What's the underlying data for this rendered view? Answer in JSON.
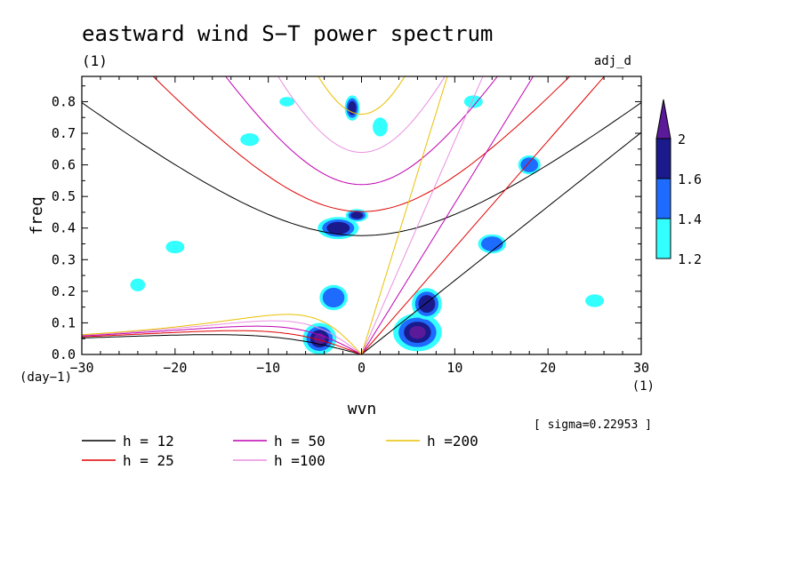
{
  "chart_data": {
    "type": "heatmap",
    "title": "eastward wind S−T power spectrum",
    "subtitle_left": "(1)",
    "subtitle_right": "adj_d",
    "xlabel": "wvn",
    "x_unit": "(1)",
    "ylabel": "freq",
    "y_unit": "(day−1)",
    "xlim": [
      -30,
      30
    ],
    "ylim": [
      0,
      0.88
    ],
    "x_ticks": [
      -30,
      -20,
      -10,
      0,
      10,
      20,
      30
    ],
    "x_tick_labels": [
      "−30",
      "−20",
      "−10",
      "0",
      "10",
      "20",
      "30"
    ],
    "y_ticks": [
      0,
      0.1,
      0.2,
      0.3,
      0.4,
      0.5,
      0.6,
      0.7,
      0.8
    ],
    "y_tick_labels": [
      "0.0",
      "0.1",
      "0.2",
      "0.3",
      "0.4",
      "0.5",
      "0.6",
      "0.7",
      "0.8"
    ],
    "sigma_text": "[ sigma=0.22953 ]",
    "colorbar": {
      "levels": [
        1.2,
        1.4,
        1.6,
        2
      ],
      "labels": [
        "1.2",
        "1.4",
        "1.6",
        "2"
      ],
      "colors": [
        "#33ffff",
        "#1e6bff",
        "#1a1a8c",
        "#5a1a99"
      ]
    },
    "blobs": [
      {
        "x": 6,
        "y": 0.07,
        "rx": 2.6,
        "ry": 0.06,
        "level": 3
      },
      {
        "x": 7,
        "y": 0.16,
        "rx": 1.6,
        "ry": 0.05,
        "level": 2
      },
      {
        "x": -4.5,
        "y": 0.05,
        "rx": 1.8,
        "ry": 0.05,
        "level": 3
      },
      {
        "x": -2.5,
        "y": 0.4,
        "rx": 2.2,
        "ry": 0.035,
        "level": 2
      },
      {
        "x": -0.5,
        "y": 0.44,
        "rx": 1.2,
        "ry": 0.02,
        "level": 2
      },
      {
        "x": -1,
        "y": 0.78,
        "rx": 0.8,
        "ry": 0.04,
        "level": 2
      },
      {
        "x": -3,
        "y": 0.18,
        "rx": 1.5,
        "ry": 0.04,
        "level": 1
      },
      {
        "x": 14,
        "y": 0.35,
        "rx": 1.5,
        "ry": 0.03,
        "level": 1
      },
      {
        "x": 18,
        "y": 0.6,
        "rx": 1.2,
        "ry": 0.03,
        "level": 1
      },
      {
        "x": -12,
        "y": 0.68,
        "rx": 1,
        "ry": 0.02,
        "level": 0
      },
      {
        "x": 2,
        "y": 0.72,
        "rx": 0.8,
        "ry": 0.03,
        "level": 0
      },
      {
        "x": -20,
        "y": 0.34,
        "rx": 1,
        "ry": 0.02,
        "level": 0
      },
      {
        "x": 25,
        "y": 0.17,
        "rx": 1,
        "ry": 0.02,
        "level": 0
      },
      {
        "x": -24,
        "y": 0.22,
        "rx": 0.8,
        "ry": 0.02,
        "level": 0
      },
      {
        "x": 12,
        "y": 0.8,
        "rx": 1,
        "ry": 0.02,
        "level": 0
      },
      {
        "x": -8,
        "y": 0.8,
        "rx": 0.8,
        "ry": 0.015,
        "level": 0
      }
    ],
    "series": [
      {
        "name": "h = 12",
        "h": 12,
        "color": "#000000"
      },
      {
        "name": "h = 25",
        "h": 25,
        "color": "#e00000"
      },
      {
        "name": "h = 50",
        "h": 50,
        "color": "#c000b0"
      },
      {
        "name": "h =100",
        "h": 100,
        "color": "#e890e0"
      },
      {
        "name": "h =200",
        "h": 200,
        "color": "#e8c000"
      }
    ]
  }
}
